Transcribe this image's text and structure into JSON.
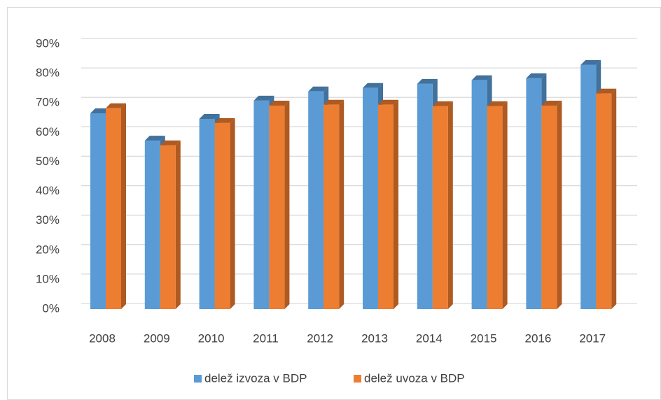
{
  "chart_data": {
    "type": "bar3d",
    "categories": [
      "2008",
      "2009",
      "2010",
      "2011",
      "2012",
      "2013",
      "2014",
      "2015",
      "2016",
      "2017"
    ],
    "series": [
      {
        "name": "delež izvoza v BDP",
        "color": "#5b9bd5",
        "side": "#41719c",
        "values": [
          66.5,
          57.2,
          64.6,
          70.8,
          73.9,
          75.1,
          76.5,
          77.7,
          78.4,
          82.9
        ]
      },
      {
        "name": "delež uvoza v BDP",
        "color": "#ed7d31",
        "side": "#ae5a21",
        "values": [
          68.2,
          55.6,
          63.2,
          69.1,
          69.4,
          69.4,
          68.9,
          68.9,
          69.1,
          73.2
        ]
      }
    ],
    "ylim": [
      0,
      90
    ],
    "yticks": [
      {
        "value": 0,
        "label": "0%"
      },
      {
        "value": 10,
        "label": "10%"
      },
      {
        "value": 20,
        "label": "20%"
      },
      {
        "value": 30,
        "label": "30%"
      },
      {
        "value": 40,
        "label": "40%"
      },
      {
        "value": 50,
        "label": "50%"
      },
      {
        "value": 60,
        "label": "60%"
      },
      {
        "value": 70,
        "label": "70%"
      },
      {
        "value": 80,
        "label": "80%"
      },
      {
        "value": 90,
        "label": "90%"
      }
    ],
    "grid": true,
    "legend": "bottom"
  }
}
